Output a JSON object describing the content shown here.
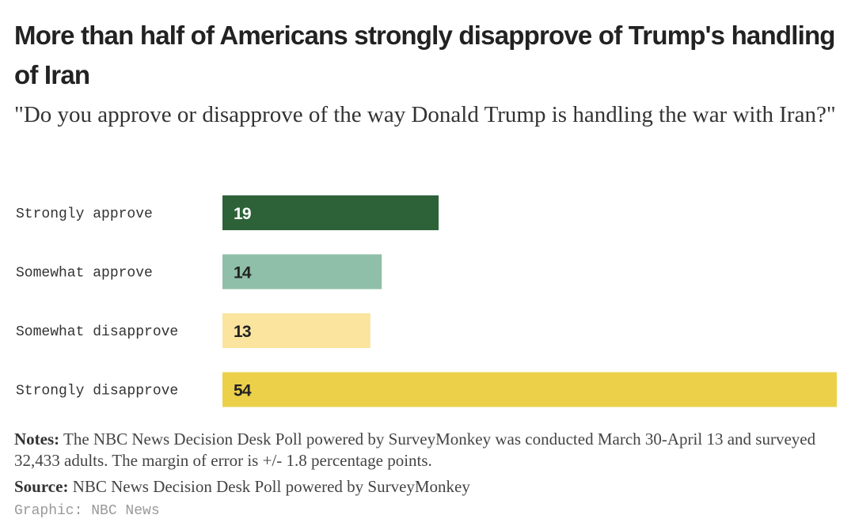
{
  "header": {
    "title": "More than half of Americans strongly disapprove of Trump's handling of Iran",
    "subtitle": "\"Do you approve or disapprove of the way Donald Trump is handling the war with Iran?\""
  },
  "chart_data": {
    "type": "bar",
    "orientation": "horizontal",
    "title": "More than half of Americans strongly disapprove of Trump's handling of Iran",
    "subtitle": "\"Do you approve or disapprove of the way Donald Trump is handling the war with Iran?\"",
    "categories": [
      "Strongly approve",
      "Somewhat approve",
      "Somewhat disapprove",
      "Strongly disapprove"
    ],
    "values": [
      19,
      14,
      13,
      54
    ],
    "colors": [
      "#2d6239",
      "#8fbfa8",
      "#fae49e",
      "#ecd04a"
    ],
    "label_colors": [
      "#ffffff",
      "#222222",
      "#222222",
      "#222222"
    ],
    "unit": "%",
    "xlabel": "",
    "ylabel": "",
    "xlim": [
      0,
      54
    ],
    "grid": false,
    "legend": "none"
  },
  "footer": {
    "notes_label": "Notes:",
    "notes_text": " The NBC News Decision Desk Poll powered by SurveyMonkey was conducted March 30-April 13 and surveyed 32,433 adults. The margin of error is +/- 1.8 percentage points.",
    "source_label": "Source:",
    "source_text": " NBC News Decision Desk Poll powered by SurveyMonkey",
    "credit": "Graphic: NBC News"
  }
}
